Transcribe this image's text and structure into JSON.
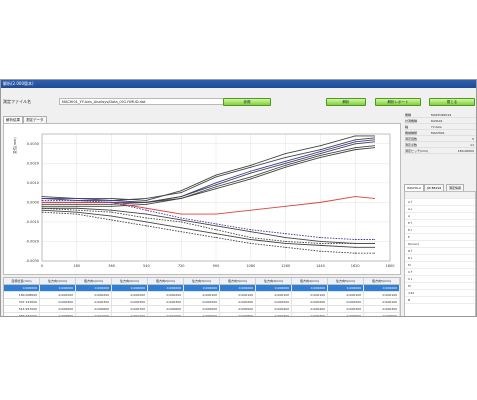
{
  "window": {
    "title": "解析(2.000版本)"
  },
  "file": {
    "label": "測定ファイル名",
    "path": "MACHI01_YY-Axis_Analisys/Data_001.FIMUD.dat",
    "btn_open": "参照",
    "btn_analyze": "解析",
    "btn_report": "解析レポート",
    "btn_close": "閉じる"
  },
  "tabs": [
    {
      "label": "解析結果"
    },
    {
      "label": "測定データ"
    }
  ],
  "chart_data": {
    "type": "line",
    "ylabel": "変位(mm)",
    "ylim": [
      -0.003,
      0.0035
    ],
    "xlim": [
      0,
      1800
    ],
    "x_ticks": [
      0,
      180,
      360,
      540,
      720,
      900,
      1080,
      1260,
      1440,
      1620,
      1800
    ],
    "y_ticks": [
      {
        "value": 0.003,
        "label": "0.0030"
      },
      {
        "value": 0.002,
        "label": "0.0020"
      },
      {
        "value": 0.001,
        "label": "0.0010"
      },
      {
        "value": 0.0,
        "label": "0.0000"
      },
      {
        "value": -0.001,
        "label": "-0.0010"
      },
      {
        "value": -0.002,
        "label": "-0.0020"
      },
      {
        "value": -0.003,
        "label": "-0.0030"
      }
    ],
    "x": [
      0,
      180,
      360,
      540,
      720,
      900,
      1080,
      1260,
      1440,
      1620,
      1720
    ],
    "series": [
      {
        "color": "#444444",
        "style": "solid",
        "values": [
          0.0003,
          0.0002,
          0.0002,
          0.0001,
          0.0006,
          0.0014,
          0.0019,
          0.0025,
          0.0029,
          0.0034,
          0.0034
        ]
      },
      {
        "color": "#444444",
        "style": "solid",
        "values": [
          0.0002,
          0.0001,
          0.0001,
          0.0002,
          0.0005,
          0.0013,
          0.0018,
          0.0023,
          0.0027,
          0.0032,
          0.0033
        ]
      },
      {
        "color": "#3b3ba6",
        "style": "solid",
        "values": [
          0.0002,
          0.0002,
          0.0001,
          0.0,
          0.0003,
          0.001,
          0.0016,
          0.0021,
          0.0026,
          0.0031,
          0.0032
        ]
      },
      {
        "color": "#444444",
        "style": "solid",
        "values": [
          0.0,
          0.0,
          0.0,
          0.0,
          0.0003,
          0.0009,
          0.0015,
          0.002,
          0.0025,
          0.003,
          0.0031
        ]
      },
      {
        "color": "#444444",
        "style": "solid",
        "values": [
          -0.0001,
          -0.0001,
          -0.0001,
          0.0,
          0.0002,
          0.0008,
          0.0013,
          0.0019,
          0.0024,
          0.0028,
          0.0029
        ]
      },
      {
        "color": "#444444",
        "style": "solid",
        "values": [
          -0.0002,
          -0.0002,
          -0.0002,
          -0.0001,
          0.0002,
          0.0007,
          0.0012,
          0.0018,
          0.0023,
          0.0027,
          0.0028
        ]
      },
      {
        "color": "#e0413a",
        "style": "solid",
        "values": [
          0.0,
          0.0,
          0.0,
          -0.0003,
          -0.0006,
          -0.0006,
          -0.0004,
          -0.0002,
          0.0,
          0.0003,
          0.0002
        ]
      },
      {
        "color": "#3b3ba6",
        "style": "dashed",
        "values": [
          0.0001,
          0.0001,
          0.0,
          -0.0004,
          -0.0008,
          -0.0011,
          -0.0014,
          -0.0016,
          -0.0018,
          -0.0019,
          -0.0019
        ]
      },
      {
        "color": "#444444",
        "style": "solid",
        "values": [
          -0.0003,
          -0.0003,
          -0.0004,
          -0.0006,
          -0.0009,
          -0.0012,
          -0.0015,
          -0.0018,
          -0.002,
          -0.0021,
          -0.0021
        ]
      },
      {
        "color": "#444444",
        "style": "dashed",
        "values": [
          -0.0003,
          -0.0004,
          -0.0005,
          -0.0008,
          -0.001,
          -0.0014,
          -0.0018,
          -0.002,
          -0.0021,
          -0.0021,
          -0.0021
        ]
      },
      {
        "color": "#444444",
        "style": "solid",
        "values": [
          -0.0004,
          -0.0005,
          -0.0007,
          -0.001,
          -0.0013,
          -0.0016,
          -0.0019,
          -0.0021,
          -0.0022,
          -0.0023,
          -0.0023
        ]
      },
      {
        "color": "#444444",
        "style": "dashed",
        "values": [
          -0.0005,
          -0.0006,
          -0.0009,
          -0.0012,
          -0.0015,
          -0.0018,
          -0.0021,
          -0.0023,
          -0.0025,
          -0.0026,
          -0.0026
        ]
      }
    ]
  },
  "side": {
    "info": [
      {
        "k": "機種",
        "v": "MAKTOR2019"
      },
      {
        "k": "計測機種",
        "v": "DATA01"
      },
      {
        "k": "軸",
        "v": "YY-Axis"
      },
      {
        "k": "機械種類",
        "v": "MACHI01"
      },
      {
        "k": "測定回数",
        "v": "5"
      },
      {
        "k": "測定点数",
        "v": "11"
      },
      {
        "k": "測定ピッチ(mm)",
        "v": "180.00000"
      }
    ],
    "tabs": [
      {
        "label": "ISO230-2"
      },
      {
        "label": "JIS B6192"
      },
      {
        "label": "測定情報"
      }
    ],
    "params": [
      "",
      "A↑",
      "A↓",
      "A",
      "E↑",
      "E↓",
      "E",
      "R(max)",
      "R↑",
      "R↓",
      "M",
      "U↑",
      "U↓",
      "M",
      "±2σ",
      "B"
    ]
  },
  "table": {
    "headers": [
      "目標位置(mm)",
      "往方向1(mm)",
      "復方向1(mm)",
      "往方向2(mm)",
      "復方向2(mm)",
      "往方向3(mm)",
      "復方向3(mm)",
      "往方向4(mm)",
      "復方向4(mm)",
      "往方向5(mm)",
      "復方向5(mm)"
    ],
    "rows": [
      [
        "0.000000",
        "0.000000",
        "0.000000",
        "0.000000",
        "0.000000",
        "0.000000",
        "0.000000",
        "0.000000",
        "0.000000",
        "0.000000",
        "0.000000"
      ],
      [
        "180.008000",
        "-0.000200",
        "-0.000200",
        "-0.000200",
        "-0.000200",
        "-0.000100",
        "-0.000100",
        "-0.000100",
        "-0.000100",
        "-0.000100",
        "-0.000100"
      ],
      [
        "347.123000",
        "-0.000400",
        "-0.000300",
        "-0.000300",
        "-0.000300",
        "-0.000200",
        "-0.000200",
        "-0.000200",
        "-0.000200",
        "-0.000200",
        "-0.000100"
      ],
      [
        "514.957000",
        "-0.000500",
        "-0.000600",
        "-0.000700",
        "-0.000600",
        "-0.000500",
        "-0.000500",
        "-0.000400",
        "-0.000400",
        "-0.000300",
        "-0.000300"
      ],
      [
        "687.464000",
        "-0.000800",
        "-0.001000",
        "-0.001100",
        "-0.001000",
        "-0.000900",
        "-0.000800",
        "-0.000700",
        "-0.000700",
        "-0.000600",
        "-0.000500"
      ]
    ]
  }
}
